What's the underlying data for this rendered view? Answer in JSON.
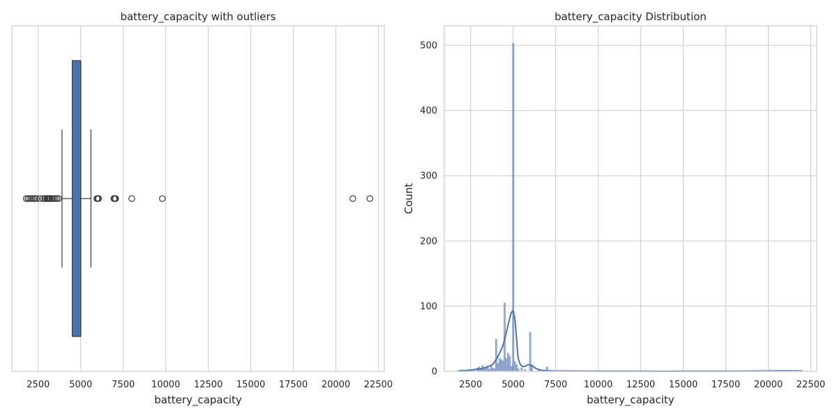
{
  "chart_data": [
    {
      "type": "box",
      "title": "battery_capacity with outliers",
      "xlabel": "battery_capacity",
      "ylabel": "",
      "xlim": [
        950,
        22850
      ],
      "xticks": [
        2500,
        5000,
        7500,
        10000,
        12500,
        15000,
        17500,
        20000,
        22500
      ],
      "grid": true,
      "box": {
        "q1": 4500,
        "median": 5000,
        "q3": 5000,
        "whisker_low": 3900,
        "whisker_high": 5600
      },
      "outliers": [
        1800,
        1900,
        2000,
        2100,
        2200,
        2300,
        2400,
        2600,
        2800,
        2900,
        3000,
        3050,
        3100,
        3150,
        3200,
        3300,
        3400,
        3500,
        3600,
        3700,
        5950,
        6000,
        6050,
        6950,
        7000,
        7050,
        8000,
        9800,
        21000,
        22000
      ],
      "colors": {
        "box": "#4c72b0",
        "outline": "#3a3a3a"
      }
    },
    {
      "type": "histogram",
      "title": "battery_capacity Distribution",
      "xlabel": "battery_capacity",
      "ylabel": "Count",
      "xlim": [
        950,
        22850
      ],
      "ylim": [
        0,
        530
      ],
      "xticks": [
        2500,
        5000,
        7500,
        10000,
        12500,
        15000,
        17500,
        20000,
        22500
      ],
      "yticks": [
        0,
        100,
        200,
        300,
        400,
        500
      ],
      "grid": true,
      "bin_width": 100,
      "bars": [
        {
          "x": 1800,
          "count": 1
        },
        {
          "x": 2000,
          "count": 1
        },
        {
          "x": 2300,
          "count": 1
        },
        {
          "x": 2500,
          "count": 1
        },
        {
          "x": 2700,
          "count": 2
        },
        {
          "x": 2900,
          "count": 5
        },
        {
          "x": 3000,
          "count": 7
        },
        {
          "x": 3100,
          "count": 5
        },
        {
          "x": 3200,
          "count": 9
        },
        {
          "x": 3300,
          "count": 4
        },
        {
          "x": 3400,
          "count": 6
        },
        {
          "x": 3500,
          "count": 8
        },
        {
          "x": 3600,
          "count": 3
        },
        {
          "x": 3700,
          "count": 10
        },
        {
          "x": 3800,
          "count": 5
        },
        {
          "x": 3900,
          "count": 4
        },
        {
          "x": 4000,
          "count": 49
        },
        {
          "x": 4100,
          "count": 12
        },
        {
          "x": 4200,
          "count": 20
        },
        {
          "x": 4300,
          "count": 18
        },
        {
          "x": 4400,
          "count": 16
        },
        {
          "x": 4500,
          "count": 105
        },
        {
          "x": 4600,
          "count": 20
        },
        {
          "x": 4700,
          "count": 28
        },
        {
          "x": 4800,
          "count": 23
        },
        {
          "x": 4900,
          "count": 8
        },
        {
          "x": 5000,
          "count": 503
        },
        {
          "x": 5100,
          "count": 15
        },
        {
          "x": 5200,
          "count": 10
        },
        {
          "x": 5300,
          "count": 4
        },
        {
          "x": 5500,
          "count": 5
        },
        {
          "x": 5700,
          "count": 3
        },
        {
          "x": 6000,
          "count": 60
        },
        {
          "x": 6100,
          "count": 8
        },
        {
          "x": 6500,
          "count": 3
        },
        {
          "x": 7000,
          "count": 7
        },
        {
          "x": 8000,
          "count": 1
        },
        {
          "x": 9800,
          "count": 1
        },
        {
          "x": 21000,
          "count": 1
        },
        {
          "x": 22000,
          "count": 1
        }
      ],
      "kde": [
        [
          1800,
          1
        ],
        [
          2300,
          1.5
        ],
        [
          2800,
          3
        ],
        [
          3100,
          4
        ],
        [
          3500,
          7
        ],
        [
          3800,
          11
        ],
        [
          4000,
          18
        ],
        [
          4200,
          28
        ],
        [
          4400,
          40
        ],
        [
          4600,
          60
        ],
        [
          4800,
          82
        ],
        [
          4900,
          90
        ],
        [
          5000,
          92
        ],
        [
          5100,
          80
        ],
        [
          5200,
          50
        ],
        [
          5300,
          20
        ],
        [
          5500,
          8
        ],
        [
          5700,
          8
        ],
        [
          5900,
          10
        ],
        [
          6100,
          9
        ],
        [
          6300,
          5
        ],
        [
          6600,
          2
        ],
        [
          7000,
          1
        ],
        [
          8000,
          0.5
        ],
        [
          10000,
          0.3
        ],
        [
          14000,
          0.2
        ],
        [
          18000,
          0.3
        ],
        [
          21000,
          0.8
        ],
        [
          22000,
          0.5
        ]
      ],
      "colors": {
        "bars": "#4c72b0",
        "kde": "#4c72b0"
      }
    }
  ]
}
